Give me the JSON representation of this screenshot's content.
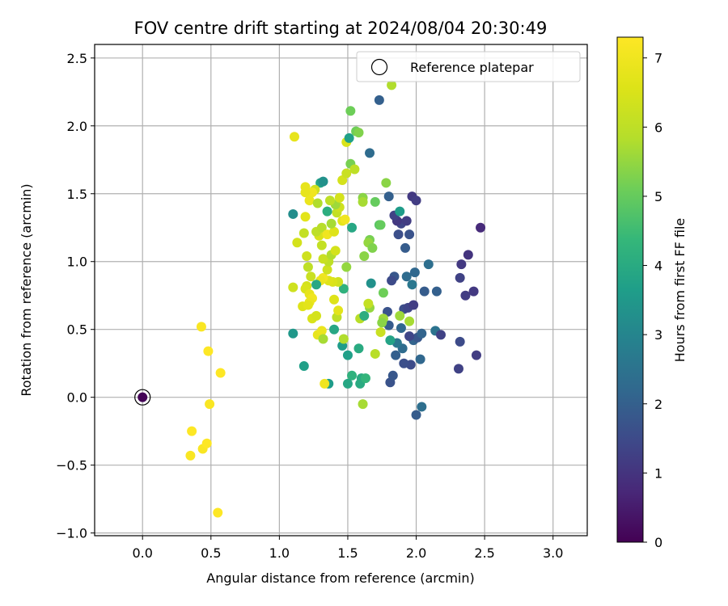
{
  "chart_data": {
    "type": "scatter",
    "title": "FOV centre drift starting at 2024/08/04 20:30:49",
    "xlabel": "Angular distance from reference (arcmin)",
    "ylabel": "Rotation from reference (arcmin)",
    "xlim": [
      -0.35,
      3.25
    ],
    "ylim": [
      -1.02,
      2.6
    ],
    "xticks": [
      "0.0",
      "0.5",
      "1.0",
      "1.5",
      "2.0",
      "2.5",
      "3.0"
    ],
    "xtick_values": [
      0,
      0.5,
      1,
      1.5,
      2,
      2.5,
      3
    ],
    "yticks": [
      "−1.0",
      "−0.5",
      "0.0",
      "0.5",
      "1.0",
      "1.5",
      "2.0",
      "2.5"
    ],
    "ytick_values": [
      -1,
      -0.5,
      0,
      0.5,
      1,
      1.5,
      2,
      2.5
    ],
    "grid": true,
    "legend": {
      "position": "top-right",
      "entries": [
        "Reference platepar"
      ]
    },
    "reference": {
      "x": 0.0,
      "y": 0.0,
      "label": "Reference platepar"
    },
    "colorbar": {
      "label": "Hours from first FF file",
      "colormap": "viridis",
      "range": [
        0,
        7.3
      ],
      "ticks": [
        "0",
        "1",
        "2",
        "3",
        "4",
        "5",
        "6",
        "7"
      ],
      "tick_values": [
        0,
        1,
        2,
        3,
        4,
        5,
        6,
        7
      ]
    },
    "points": [
      {
        "x": 0.0,
        "y": 0.0,
        "h": 0.05
      },
      {
        "x": 2.0,
        "y": -0.13,
        "h": 1.9
      },
      {
        "x": 2.04,
        "y": -0.07,
        "h": 2.4
      },
      {
        "x": 2.03,
        "y": 0.28,
        "h": 2.2
      },
      {
        "x": 1.81,
        "y": 0.11,
        "h": 1.7
      },
      {
        "x": 1.83,
        "y": 0.16,
        "h": 1.8
      },
      {
        "x": 1.96,
        "y": 0.24,
        "h": 1.5
      },
      {
        "x": 1.91,
        "y": 0.25,
        "h": 1.6
      },
      {
        "x": 1.85,
        "y": 0.31,
        "h": 2.0
      },
      {
        "x": 1.9,
        "y": 0.36,
        "h": 2.3
      },
      {
        "x": 1.86,
        "y": 0.4,
        "h": 2.6
      },
      {
        "x": 1.98,
        "y": 0.42,
        "h": 2.1
      },
      {
        "x": 2.01,
        "y": 0.44,
        "h": 1.8
      },
      {
        "x": 1.95,
        "y": 0.45,
        "h": 1.4
      },
      {
        "x": 2.04,
        "y": 0.47,
        "h": 2.1
      },
      {
        "x": 2.14,
        "y": 0.49,
        "h": 2.5
      },
      {
        "x": 2.18,
        "y": 0.46,
        "h": 1.3
      },
      {
        "x": 1.89,
        "y": 0.51,
        "h": 2.2
      },
      {
        "x": 1.8,
        "y": 0.53,
        "h": 1.9
      },
      {
        "x": 1.79,
        "y": 0.63,
        "h": 1.7
      },
      {
        "x": 1.91,
        "y": 0.65,
        "h": 1.6
      },
      {
        "x": 1.94,
        "y": 0.66,
        "h": 1.4
      },
      {
        "x": 1.98,
        "y": 0.68,
        "h": 1.2
      },
      {
        "x": 2.06,
        "y": 0.78,
        "h": 1.9
      },
      {
        "x": 2.15,
        "y": 0.78,
        "h": 2.0
      },
      {
        "x": 1.97,
        "y": 0.83,
        "h": 2.6
      },
      {
        "x": 1.93,
        "y": 0.89,
        "h": 2.3
      },
      {
        "x": 1.84,
        "y": 0.89,
        "h": 1.8
      },
      {
        "x": 1.82,
        "y": 0.86,
        "h": 1.5
      },
      {
        "x": 1.99,
        "y": 0.92,
        "h": 2.2
      },
      {
        "x": 2.09,
        "y": 0.98,
        "h": 2.4
      },
      {
        "x": 1.92,
        "y": 1.1,
        "h": 1.9
      },
      {
        "x": 1.95,
        "y": 1.2,
        "h": 1.7
      },
      {
        "x": 1.87,
        "y": 1.2,
        "h": 1.6
      },
      {
        "x": 1.89,
        "y": 1.28,
        "h": 1.4
      },
      {
        "x": 1.93,
        "y": 1.3,
        "h": 1.2
      },
      {
        "x": 1.86,
        "y": 1.3,
        "h": 1.1
      },
      {
        "x": 1.84,
        "y": 1.34,
        "h": 1.3
      },
      {
        "x": 1.88,
        "y": 1.37,
        "h": 3.6
      },
      {
        "x": 1.8,
        "y": 1.48,
        "h": 2.0
      },
      {
        "x": 1.97,
        "y": 1.48,
        "h": 1.1
      },
      {
        "x": 2.0,
        "y": 1.45,
        "h": 1.2
      },
      {
        "x": 1.73,
        "y": 2.19,
        "h": 2.0
      },
      {
        "x": 1.66,
        "y": 1.8,
        "h": 2.3
      },
      {
        "x": 1.73,
        "y": 1.27,
        "h": 4.8
      },
      {
        "x": 1.74,
        "y": 1.27,
        "h": 5.0
      },
      {
        "x": 2.33,
        "y": 0.98,
        "h": 1.1
      },
      {
        "x": 2.38,
        "y": 1.05,
        "h": 1.0
      },
      {
        "x": 2.47,
        "y": 1.25,
        "h": 0.8
      },
      {
        "x": 2.32,
        "y": 0.88,
        "h": 1.3
      },
      {
        "x": 2.36,
        "y": 0.75,
        "h": 1.2
      },
      {
        "x": 2.42,
        "y": 0.78,
        "h": 1.1
      },
      {
        "x": 2.32,
        "y": 0.41,
        "h": 1.5
      },
      {
        "x": 2.44,
        "y": 0.31,
        "h": 1.2
      },
      {
        "x": 2.31,
        "y": 0.21,
        "h": 1.3
      },
      {
        "x": 1.67,
        "y": 0.84,
        "h": 3.3
      },
      {
        "x": 1.76,
        "y": 0.77,
        "h": 5.1
      },
      {
        "x": 1.81,
        "y": 0.42,
        "h": 3.8
      },
      {
        "x": 1.95,
        "y": 0.56,
        "h": 5.7
      },
      {
        "x": 1.88,
        "y": 0.6,
        "h": 5.6
      },
      {
        "x": 1.6,
        "y": 0.14,
        "h": 4.0
      },
      {
        "x": 1.53,
        "y": 0.16,
        "h": 4.2
      },
      {
        "x": 1.59,
        "y": 0.1,
        "h": 4.0
      },
      {
        "x": 1.63,
        "y": 0.14,
        "h": 4.3
      },
      {
        "x": 1.5,
        "y": 0.1,
        "h": 3.9
      },
      {
        "x": 1.36,
        "y": 0.1,
        "h": 3.6
      },
      {
        "x": 1.33,
        "y": 0.1,
        "h": 7.0
      },
      {
        "x": 1.61,
        "y": -0.05,
        "h": 5.7
      },
      {
        "x": 1.7,
        "y": 0.32,
        "h": 5.9
      },
      {
        "x": 1.58,
        "y": 0.36,
        "h": 4.0
      },
      {
        "x": 1.46,
        "y": 0.38,
        "h": 3.6
      },
      {
        "x": 1.5,
        "y": 0.31,
        "h": 3.7
      },
      {
        "x": 1.4,
        "y": 0.5,
        "h": 3.9
      },
      {
        "x": 1.59,
        "y": 0.58,
        "h": 5.9
      },
      {
        "x": 1.62,
        "y": 0.6,
        "h": 4.1
      },
      {
        "x": 1.76,
        "y": 0.58,
        "h": 5.6
      },
      {
        "x": 1.75,
        "y": 0.55,
        "h": 5.4
      },
      {
        "x": 1.74,
        "y": 0.48,
        "h": 6.2
      },
      {
        "x": 1.66,
        "y": 0.66,
        "h": 5.5
      },
      {
        "x": 1.65,
        "y": 0.69,
        "h": 6.1
      },
      {
        "x": 1.47,
        "y": 0.43,
        "h": 5.8
      },
      {
        "x": 1.42,
        "y": 0.59,
        "h": 6.0
      },
      {
        "x": 1.43,
        "y": 0.64,
        "h": 6.7
      },
      {
        "x": 1.4,
        "y": 0.72,
        "h": 6.6
      },
      {
        "x": 1.47,
        "y": 0.8,
        "h": 4.2
      },
      {
        "x": 1.43,
        "y": 0.85,
        "h": 6.3
      },
      {
        "x": 1.49,
        "y": 0.96,
        "h": 5.5
      },
      {
        "x": 1.39,
        "y": 0.85,
        "h": 6.5
      },
      {
        "x": 1.36,
        "y": 0.86,
        "h": 6.6
      },
      {
        "x": 1.32,
        "y": 0.88,
        "h": 7.0
      },
      {
        "x": 1.3,
        "y": 0.86,
        "h": 6.9
      },
      {
        "x": 1.27,
        "y": 0.83,
        "h": 3.9
      },
      {
        "x": 1.35,
        "y": 0.94,
        "h": 6.3
      },
      {
        "x": 1.36,
        "y": 1.0,
        "h": 6.0
      },
      {
        "x": 1.32,
        "y": 1.02,
        "h": 6.2
      },
      {
        "x": 1.38,
        "y": 1.05,
        "h": 5.8
      },
      {
        "x": 1.41,
        "y": 1.08,
        "h": 6.4
      },
      {
        "x": 1.31,
        "y": 1.12,
        "h": 6.1
      },
      {
        "x": 1.29,
        "y": 1.19,
        "h": 6.5
      },
      {
        "x": 1.27,
        "y": 1.22,
        "h": 6.0
      },
      {
        "x": 1.31,
        "y": 1.25,
        "h": 5.9
      },
      {
        "x": 1.35,
        "y": 1.2,
        "h": 7.0
      },
      {
        "x": 1.4,
        "y": 1.22,
        "h": 6.6
      },
      {
        "x": 1.38,
        "y": 1.28,
        "h": 5.7
      },
      {
        "x": 1.42,
        "y": 1.36,
        "h": 6.1
      },
      {
        "x": 1.44,
        "y": 1.4,
        "h": 6.3
      },
      {
        "x": 1.41,
        "y": 1.42,
        "h": 5.6
      },
      {
        "x": 1.44,
        "y": 1.47,
        "h": 6.4
      },
      {
        "x": 1.37,
        "y": 1.45,
        "h": 6.0
      },
      {
        "x": 1.35,
        "y": 1.37,
        "h": 4.1
      },
      {
        "x": 1.46,
        "y": 1.3,
        "h": 6.7
      },
      {
        "x": 1.53,
        "y": 1.25,
        "h": 3.9
      },
      {
        "x": 1.46,
        "y": 1.6,
        "h": 6.4
      },
      {
        "x": 1.49,
        "y": 1.65,
        "h": 6.2
      },
      {
        "x": 1.52,
        "y": 1.72,
        "h": 5.2
      },
      {
        "x": 1.55,
        "y": 1.68,
        "h": 6.0
      },
      {
        "x": 1.49,
        "y": 1.88,
        "h": 6.5
      },
      {
        "x": 1.51,
        "y": 1.91,
        "h": 3.7
      },
      {
        "x": 1.56,
        "y": 1.96,
        "h": 5.1
      },
      {
        "x": 1.58,
        "y": 1.95,
        "h": 5.3
      },
      {
        "x": 1.52,
        "y": 2.11,
        "h": 5.1
      },
      {
        "x": 1.82,
        "y": 2.3,
        "h": 5.8
      },
      {
        "x": 1.78,
        "y": 1.58,
        "h": 5.4
      },
      {
        "x": 1.7,
        "y": 1.44,
        "h": 5.0
      },
      {
        "x": 1.61,
        "y": 1.47,
        "h": 5.4
      },
      {
        "x": 1.61,
        "y": 1.44,
        "h": 5.7
      },
      {
        "x": 1.66,
        "y": 1.16,
        "h": 5.2
      },
      {
        "x": 1.65,
        "y": 1.14,
        "h": 5.5
      },
      {
        "x": 1.68,
        "y": 1.1,
        "h": 5.3
      },
      {
        "x": 1.62,
        "y": 1.04,
        "h": 5.4
      },
      {
        "x": 1.48,
        "y": 1.31,
        "h": 7.0
      },
      {
        "x": 1.3,
        "y": 1.58,
        "h": 3.8
      },
      {
        "x": 1.32,
        "y": 1.59,
        "h": 3.3
      },
      {
        "x": 1.26,
        "y": 1.53,
        "h": 6.3
      },
      {
        "x": 1.24,
        "y": 1.51,
        "h": 7.0
      },
      {
        "x": 1.19,
        "y": 1.51,
        "h": 6.8
      },
      {
        "x": 1.19,
        "y": 1.55,
        "h": 6.8
      },
      {
        "x": 1.22,
        "y": 1.45,
        "h": 6.9
      },
      {
        "x": 1.28,
        "y": 1.43,
        "h": 5.8
      },
      {
        "x": 1.1,
        "y": 1.35,
        "h": 3.2
      },
      {
        "x": 1.19,
        "y": 1.33,
        "h": 6.7
      },
      {
        "x": 1.18,
        "y": 1.21,
        "h": 6.1
      },
      {
        "x": 1.13,
        "y": 1.14,
        "h": 6.4
      },
      {
        "x": 1.2,
        "y": 1.04,
        "h": 6.3
      },
      {
        "x": 1.21,
        "y": 0.96,
        "h": 6.0
      },
      {
        "x": 1.23,
        "y": 0.89,
        "h": 6.2
      },
      {
        "x": 1.2,
        "y": 0.82,
        "h": 6.4
      },
      {
        "x": 1.19,
        "y": 0.8,
        "h": 6.5
      },
      {
        "x": 1.22,
        "y": 0.76,
        "h": 6.8
      },
      {
        "x": 1.24,
        "y": 0.73,
        "h": 7.0
      },
      {
        "x": 1.22,
        "y": 0.7,
        "h": 6.9
      },
      {
        "x": 1.17,
        "y": 0.67,
        "h": 6.6
      },
      {
        "x": 1.21,
        "y": 0.68,
        "h": 6.7
      },
      {
        "x": 1.24,
        "y": 0.58,
        "h": 6.5
      },
      {
        "x": 1.27,
        "y": 0.6,
        "h": 6.4
      },
      {
        "x": 1.28,
        "y": 0.46,
        "h": 6.8
      },
      {
        "x": 1.31,
        "y": 0.49,
        "h": 6.9
      },
      {
        "x": 1.32,
        "y": 0.43,
        "h": 5.7
      },
      {
        "x": 1.1,
        "y": 0.81,
        "h": 6.3
      },
      {
        "x": 1.1,
        "y": 0.47,
        "h": 3.5
      },
      {
        "x": 1.18,
        "y": 0.23,
        "h": 3.7
      },
      {
        "x": 1.11,
        "y": 1.92,
        "h": 6.8
      },
      {
        "x": 0.43,
        "y": 0.52,
        "h": 7.2
      },
      {
        "x": 0.48,
        "y": 0.34,
        "h": 7.3
      },
      {
        "x": 0.57,
        "y": 0.18,
        "h": 7.3
      },
      {
        "x": 0.49,
        "y": -0.05,
        "h": 7.2
      },
      {
        "x": 0.36,
        "y": -0.25,
        "h": 7.3
      },
      {
        "x": 0.44,
        "y": -0.38,
        "h": 7.2
      },
      {
        "x": 0.47,
        "y": -0.34,
        "h": 7.3
      },
      {
        "x": 0.35,
        "y": -0.43,
        "h": 7.2
      },
      {
        "x": 0.55,
        "y": -0.85,
        "h": 7.3
      }
    ]
  }
}
